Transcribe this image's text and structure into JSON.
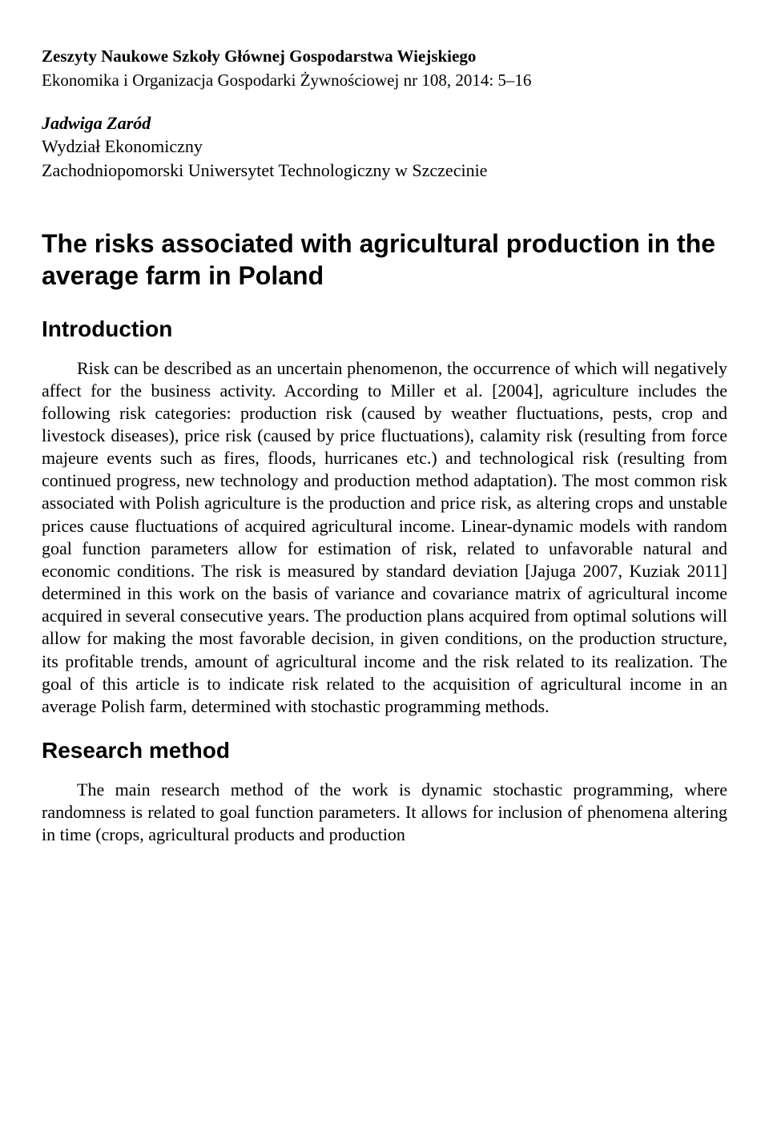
{
  "header": {
    "journal": "Zeszyty Naukowe Szkoły Głównej Gospodarstwa Wiejskiego",
    "series": "Ekonomika i Organizacja Gospodarki Żywnościowej nr 108, 2014: 5–16"
  },
  "author": {
    "name": "Jadwiga Zaród",
    "affil1": "Wydział Ekonomiczny",
    "affil2": "Zachodniopomorski Uniwersytet Technologiczny w Szczecinie"
  },
  "title": "The risks associated with agricultural production in the average farm in Poland",
  "sections": {
    "intro_heading": "Introduction",
    "intro_text": "Risk can be described as an uncertain phenomenon, the occurrence of which will negatively affect for the business activity. According to Miller et al. [2004], agriculture includes the following risk categories: production risk (caused by weather fluctuations, pests, crop and livestock diseases), price risk (caused by price fluctuations), calamity risk (resulting from force majeure events such as fires, floods, hurricanes etc.) and technological risk (resulting from continued progress, new technology and production method adaptation). The most common risk associated with Polish agriculture is the production and price risk, as altering crops and unstable prices cause fluctuations of acquired agricultural income. Linear-dynamic models with random goal function parameters allow for estimation of risk, related to unfavorable natural and economic conditions. The risk is measured by standard deviation [Jajuga 2007, Kuziak 2011] determined in this work on the basis of variance and covariance matrix of agricultural income acquired in several consecutive years. The production plans acquired from optimal solutions will allow for making the most favorable decision, in given conditions, on the production structure, its profitable trends, amount of agricultural income and the risk related to its realization. The goal of this article is to indicate risk related to the acquisition of agricultural income in an average Polish farm, determined with stochastic programming methods.",
    "method_heading": "Research method",
    "method_text": "The main research method of the work is dynamic stochastic programming, where randomness is related to goal function parameters. It allows for inclusion of phenomena altering in time (crops, agricultural products and production"
  }
}
